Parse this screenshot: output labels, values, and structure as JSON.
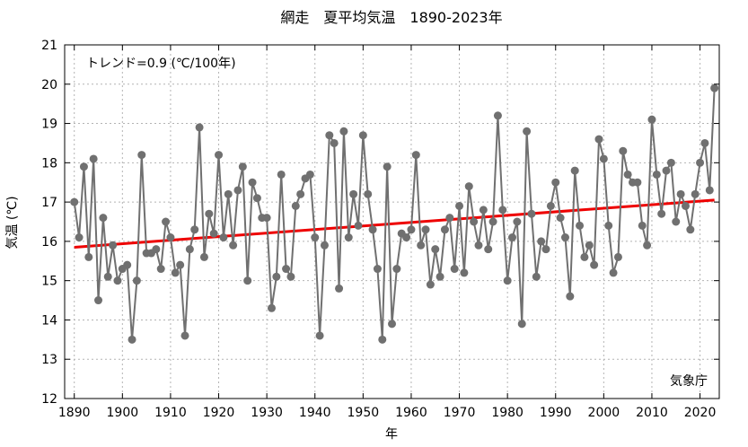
{
  "chart_data": {
    "type": "line",
    "title": "網走　夏平均気温　1890-2023年",
    "xlabel": "年",
    "ylabel": "気温 (℃)",
    "xlim": [
      1888,
      2024
    ],
    "ylim": [
      12,
      21
    ],
    "x_ticks": [
      "1890",
      "1900",
      "1910",
      "1920",
      "1930",
      "1940",
      "1950",
      "1960",
      "1970",
      "1980",
      "1990",
      "2000",
      "2010",
      "2020"
    ],
    "y_ticks": [
      "12",
      "13",
      "14",
      "15",
      "16",
      "17",
      "18",
      "19",
      "20",
      "21"
    ],
    "grid": true,
    "colors": {
      "series": "#707070",
      "trend": "#ee0000"
    },
    "annotations": {
      "trend_text": "トレンド=0.9 (℃/100年)",
      "source": "気象庁"
    },
    "trend": {
      "x": [
        1890,
        2023
      ],
      "y": [
        15.85,
        17.05
      ]
    },
    "x": [
      1890,
      1891,
      1892,
      1893,
      1894,
      1895,
      1896,
      1897,
      1898,
      1899,
      1900,
      1901,
      1902,
      1903,
      1904,
      1905,
      1906,
      1907,
      1908,
      1909,
      1910,
      1911,
      1912,
      1913,
      1914,
      1915,
      1916,
      1917,
      1918,
      1919,
      1920,
      1921,
      1922,
      1923,
      1924,
      1925,
      1926,
      1927,
      1928,
      1929,
      1930,
      1931,
      1932,
      1933,
      1934,
      1935,
      1936,
      1937,
      1938,
      1939,
      1940,
      1941,
      1942,
      1943,
      1944,
      1945,
      1946,
      1947,
      1948,
      1949,
      1950,
      1951,
      1952,
      1953,
      1954,
      1955,
      1956,
      1957,
      1958,
      1959,
      1960,
      1961,
      1962,
      1963,
      1964,
      1965,
      1966,
      1967,
      1968,
      1969,
      1970,
      1971,
      1972,
      1973,
      1974,
      1975,
      1976,
      1977,
      1978,
      1979,
      1980,
      1981,
      1982,
      1983,
      1984,
      1985,
      1986,
      1987,
      1988,
      1989,
      1990,
      1991,
      1992,
      1993,
      1994,
      1995,
      1996,
      1997,
      1998,
      1999,
      2000,
      2001,
      2002,
      2003,
      2004,
      2005,
      2006,
      2007,
      2008,
      2009,
      2010,
      2011,
      2012,
      2013,
      2014,
      2015,
      2016,
      2017,
      2018,
      2019,
      2020,
      2021,
      2022,
      2023
    ],
    "y": [
      17.0,
      16.1,
      17.9,
      15.6,
      18.1,
      14.5,
      16.6,
      15.1,
      15.9,
      15.0,
      15.3,
      15.4,
      13.5,
      15.0,
      18.2,
      15.7,
      15.7,
      15.8,
      15.3,
      16.5,
      16.1,
      15.2,
      15.4,
      13.6,
      15.8,
      16.3,
      18.9,
      15.6,
      16.7,
      16.2,
      18.2,
      16.1,
      17.2,
      15.9,
      17.3,
      17.9,
      15.0,
      17.5,
      17.1,
      16.6,
      16.6,
      14.3,
      15.1,
      17.7,
      15.3,
      15.1,
      16.9,
      17.2,
      17.6,
      17.7,
      16.1,
      13.6,
      15.9,
      18.7,
      18.5,
      14.8,
      18.8,
      16.1,
      17.2,
      16.4,
      18.7,
      17.2,
      16.3,
      15.3,
      13.5,
      17.9,
      13.9,
      15.3,
      16.2,
      16.1,
      16.3,
      18.2,
      15.9,
      16.3,
      14.9,
      15.8,
      15.1,
      16.3,
      16.6,
      15.3,
      16.9,
      15.2,
      17.4,
      16.5,
      15.9,
      16.8,
      15.8,
      16.5,
      19.2,
      16.8,
      15.0,
      16.1,
      16.5,
      13.9,
      18.8,
      16.7,
      15.1,
      16.0,
      15.8,
      16.9,
      17.5,
      16.6,
      16.1,
      14.6,
      17.8,
      16.4,
      15.6,
      15.9,
      15.4,
      18.6,
      18.1,
      16.4,
      15.2,
      15.6,
      18.3,
      17.7,
      17.5,
      17.5,
      16.4,
      15.9,
      19.1,
      17.7,
      16.7,
      17.8,
      18.0,
      16.5,
      17.2,
      16.9,
      16.3,
      17.2,
      18.0,
      18.5,
      17.3,
      19.9
    ]
  }
}
